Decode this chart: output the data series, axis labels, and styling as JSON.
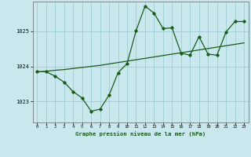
{
  "title": "Graphe pression niveau de la mer (hPa)",
  "background_color": "#c8e8ed",
  "grid_color": "#9ecdd5",
  "line_color": "#1a5c1a",
  "hours": [
    0,
    1,
    2,
    3,
    4,
    5,
    6,
    7,
    8,
    9,
    10,
    11,
    12,
    13,
    14,
    15,
    16,
    17,
    18,
    19,
    20,
    21,
    22,
    23
  ],
  "pressure": [
    1023.85,
    1023.85,
    1023.72,
    1023.55,
    1023.28,
    1023.1,
    1022.72,
    1022.78,
    1023.18,
    1023.82,
    1024.08,
    1025.02,
    1025.72,
    1025.52,
    1025.08,
    1025.1,
    1024.38,
    1024.32,
    1024.85,
    1024.35,
    1024.32,
    1024.98,
    1025.28,
    1025.28
  ],
  "trend": [
    1023.84,
    1023.86,
    1023.89,
    1023.91,
    1023.94,
    1023.97,
    1024.0,
    1024.03,
    1024.07,
    1024.11,
    1024.15,
    1024.19,
    1024.23,
    1024.27,
    1024.31,
    1024.35,
    1024.39,
    1024.43,
    1024.47,
    1024.51,
    1024.55,
    1024.59,
    1024.63,
    1024.67
  ],
  "ylim": [
    1022.4,
    1025.85
  ],
  "yticks": [
    1023,
    1024,
    1025
  ],
  "xticks": [
    0,
    1,
    2,
    3,
    4,
    5,
    6,
    7,
    8,
    9,
    10,
    11,
    12,
    13,
    14,
    15,
    16,
    17,
    18,
    19,
    20,
    21,
    22,
    23
  ]
}
